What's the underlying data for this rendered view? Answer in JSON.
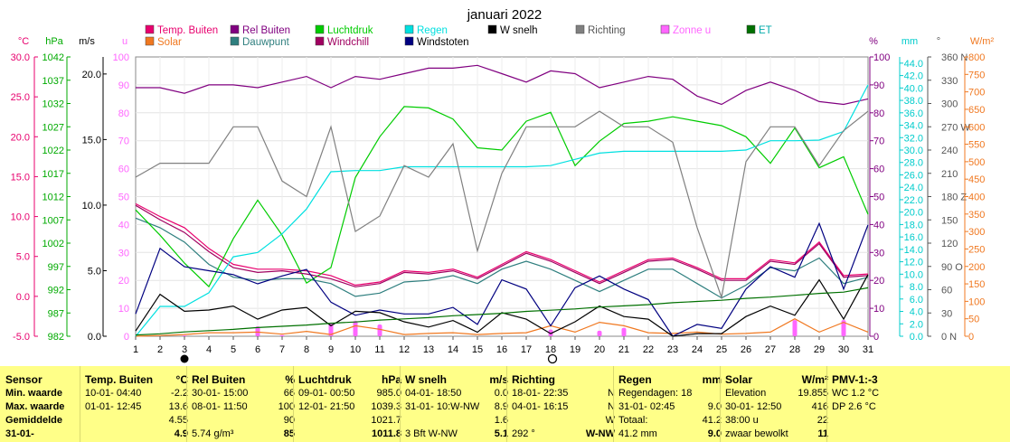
{
  "title": "januari 2022",
  "legend": [
    {
      "label": "Temp. Buiten",
      "color": "#e8006e"
    },
    {
      "label": "Solar",
      "color": "#f07820"
    },
    {
      "label": "Rel Buiten",
      "color": "#800080"
    },
    {
      "label": "Dauwpunt",
      "color": "#2f7f7f"
    },
    {
      "label": "Luchtdruk",
      "color": "#00cc00"
    },
    {
      "label": "Windchill",
      "color": "#a00060"
    },
    {
      "label": "Regen",
      "color": "#00e0e0"
    },
    {
      "label": "Windstoten",
      "color": "#000080"
    },
    {
      "label": "W snelh",
      "color": "#000000"
    },
    {
      "label": "Richting",
      "color": "#808080"
    },
    {
      "label": "Zonne u",
      "color": "#ff66ff"
    },
    {
      "label": "ET",
      "color": "#007000"
    }
  ],
  "axes": {
    "celsius": {
      "unit": "°C",
      "ticks": [
        "30.0",
        "25.0",
        "20.0",
        "15.0",
        "10.0",
        "5.0",
        "0.0",
        "-5.0"
      ],
      "color": "#e8006e"
    },
    "hpa": {
      "unit": "hPa",
      "ticks": [
        "1042",
        "1037",
        "1032",
        "1027",
        "1022",
        "1017",
        "1012",
        "1007",
        "1002",
        "997",
        "992",
        "987",
        "982"
      ],
      "color": "#00aa00"
    },
    "ms": {
      "unit": "m/s",
      "ticks": [
        "20.0",
        "15.0",
        "10.0",
        "5.0",
        "0.0"
      ],
      "color": "#000000"
    },
    "u": {
      "unit": "u",
      "ticks": [
        "100",
        "90",
        "80",
        "70",
        "60",
        "50",
        "40",
        "30",
        "20",
        "10",
        "0"
      ],
      "color": "#ff66ff"
    },
    "pct": {
      "unit": "%",
      "ticks": [
        "100",
        "90",
        "80",
        "70",
        "60",
        "50",
        "40",
        "30",
        "20",
        "10",
        "0"
      ],
      "color": "#800080"
    },
    "mm": {
      "unit": "mm",
      "ticks": [
        "44.0",
        "42.0",
        "40.0",
        "38.0",
        "36.0",
        "34.0",
        "32.0",
        "30.0",
        "28.0",
        "26.0",
        "24.0",
        "22.0",
        "20.0",
        "18.0",
        "16.0",
        "14.0",
        "12.0",
        "10.0",
        "8.0",
        "6.0",
        "4.0",
        "2.0",
        "0.0"
      ],
      "color": "#00cccc"
    },
    "deg": {
      "unit": "°",
      "ticks": [
        "360 N",
        "330",
        "300",
        "270 W",
        "240",
        "210",
        "180 Z",
        "150",
        "120",
        "90 O",
        "60",
        "30",
        "0 N"
      ],
      "color": "#555555"
    },
    "wm2": {
      "unit": "W/m²",
      "ticks": [
        "800",
        "750",
        "700",
        "650",
        "600",
        "550",
        "500",
        "450",
        "400",
        "350",
        "300",
        "250",
        "200",
        "150",
        "100",
        "50",
        "0"
      ],
      "color": "#f07820"
    },
    "x": {
      "ticks": [
        "1",
        "2",
        "3",
        "4",
        "5",
        "6",
        "7",
        "8",
        "9",
        "10",
        "11",
        "12",
        "13",
        "14",
        "15",
        "16",
        "17",
        "18",
        "19",
        "20",
        "21",
        "22",
        "23",
        "24",
        "25",
        "26",
        "27",
        "28",
        "29",
        "30",
        "31"
      ]
    }
  },
  "chart_data": {
    "type": "line",
    "title": "januari 2022",
    "x": [
      1,
      2,
      3,
      4,
      5,
      6,
      7,
      8,
      9,
      10,
      11,
      12,
      13,
      14,
      15,
      16,
      17,
      18,
      19,
      20,
      21,
      22,
      23,
      24,
      25,
      26,
      27,
      28,
      29,
      30,
      31
    ],
    "series": [
      {
        "name": "Temp. Buiten",
        "axis": "celsius",
        "color": "#e8006e",
        "values": [
          11.6,
          10.0,
          8.6,
          6.0,
          4.0,
          3.4,
          3.4,
          3.2,
          2.6,
          1.4,
          1.8,
          3.2,
          3.0,
          3.4,
          2.4,
          4.0,
          5.6,
          4.6,
          3.2,
          1.8,
          3.2,
          4.6,
          4.8,
          3.6,
          2.2,
          2.2,
          4.6,
          4.2,
          6.8,
          2.6,
          2.8
        ]
      },
      {
        "name": "Solar",
        "axis": "wm2",
        "color": "#f07820",
        "values": [
          0,
          2,
          5,
          10,
          10,
          12,
          6,
          14,
          5,
          30,
          20,
          5,
          8,
          10,
          5,
          8,
          10,
          30,
          12,
          40,
          30,
          10,
          8,
          12,
          6,
          8,
          12,
          50,
          12,
          40,
          12
        ]
      },
      {
        "name": "Rel Buiten",
        "axis": "pct",
        "color": "#800080",
        "values": [
          89,
          89,
          87,
          90,
          90,
          89,
          91,
          93,
          89,
          93,
          92,
          94,
          96,
          96,
          97,
          94,
          91,
          95,
          94,
          89,
          91,
          93,
          92,
          86,
          83,
          88,
          91,
          88,
          84,
          83,
          85
        ]
      },
      {
        "name": "Dauwpunt",
        "axis": "celsius",
        "color": "#2f7f7f",
        "values": [
          9.8,
          8.6,
          6.8,
          4.0,
          2.4,
          2.0,
          2.2,
          2.2,
          1.6,
          0.0,
          0.4,
          1.8,
          2.0,
          2.6,
          1.6,
          3.4,
          4.4,
          3.4,
          2.0,
          0.6,
          2.0,
          3.4,
          3.4,
          1.6,
          -0.2,
          1.4,
          3.6,
          3.2,
          4.8,
          1.6,
          2.4
        ]
      },
      {
        "name": "Luchtdruk",
        "axis": "hpa",
        "color": "#00cc00",
        "values": [
          1010.5,
          1004.8,
          998.5,
          993.2,
          1004.0,
          1012.7,
          1004.8,
          994.0,
          997.5,
          1017.8,
          1027.0,
          1033.8,
          1033.5,
          1031.0,
          1024.5,
          1024.0,
          1030.5,
          1032.5,
          1020.5,
          1026.0,
          1030.0,
          1030.5,
          1031.5,
          1030.5,
          1029.5,
          1027.0,
          1021.0,
          1029.0,
          1020.0,
          1022.5,
          1009.5
        ]
      },
      {
        "name": "Windchill",
        "axis": "celsius",
        "color": "#a00060",
        "values": [
          11.4,
          9.6,
          8.0,
          5.6,
          3.6,
          3.0,
          3.2,
          2.8,
          2.2,
          1.2,
          1.6,
          3.0,
          2.8,
          3.2,
          2.2,
          3.8,
          5.4,
          4.4,
          3.0,
          1.6,
          3.0,
          4.4,
          4.6,
          3.4,
          2.0,
          2.0,
          4.4,
          4.0,
          6.6,
          2.4,
          2.6
        ]
      },
      {
        "name": "Regen",
        "axis": "mm",
        "color": "#00e0e0",
        "values": [
          0,
          4.8,
          4.8,
          7.0,
          12.8,
          13.5,
          16.5,
          20.5,
          26.5,
          26.7,
          26.7,
          27.3,
          27.3,
          27.3,
          27.3,
          27.3,
          27.3,
          27.5,
          28.5,
          29.5,
          29.8,
          29.8,
          29.8,
          29.8,
          29.8,
          30.0,
          31.5,
          31.5,
          31.6,
          33.0,
          40.5
        ]
      },
      {
        "name": "Windstoten",
        "axis": "ms",
        "color": "#000080",
        "values": [
          1.7,
          6.7,
          5.3,
          5.0,
          4.7,
          4.0,
          4.6,
          5.1,
          2.6,
          1.6,
          2.0,
          1.7,
          1.7,
          2.2,
          0.9,
          4.3,
          3.6,
          0.8,
          3.7,
          4.6,
          3.6,
          2.8,
          0.0,
          0.9,
          0.6,
          3.6,
          5.3,
          4.5,
          8.6,
          3.6,
          8.5
        ]
      },
      {
        "name": "W snelh",
        "axis": "ms",
        "color": "#000000",
        "values": [
          0.4,
          3.2,
          1.9,
          2.0,
          2.3,
          1.3,
          2.0,
          2.2,
          0.8,
          1.9,
          1.8,
          1.1,
          0.7,
          1.2,
          0.3,
          1.8,
          1.3,
          0.2,
          1.1,
          2.3,
          1.5,
          1.3,
          0.0,
          0.2,
          0.2,
          1.5,
          2.3,
          1.6,
          4.3,
          1.3,
          4.7
        ]
      },
      {
        "name": "Richting",
        "axis": "deg",
        "color": "#808080",
        "values": [
          205,
          223,
          223,
          223,
          270,
          270,
          200,
          180,
          270,
          135,
          155,
          220,
          205,
          248,
          110,
          210,
          270,
          270,
          270,
          290,
          270,
          270,
          250,
          140,
          50,
          225,
          270,
          270,
          220,
          265,
          290
        ]
      },
      {
        "name": "Zonne u",
        "axis": "u",
        "color": "#ff66ff",
        "bars": true,
        "values": [
          0,
          0,
          0.3,
          0,
          0,
          3.5,
          0.4,
          0,
          4.5,
          5.5,
          4.2,
          0,
          0,
          0,
          0,
          0,
          0,
          2.4,
          0,
          2.0,
          3.0,
          0,
          0,
          0,
          0,
          0,
          0,
          5.8,
          0,
          5.8,
          0
        ]
      },
      {
        "name": "ET",
        "axis": "mm",
        "color": "#007000",
        "values": [
          0.2,
          0.4,
          0.7,
          0.9,
          1.1,
          1.4,
          1.6,
          1.8,
          2.1,
          2.3,
          2.6,
          2.8,
          3.0,
          3.3,
          3.5,
          3.7,
          4.0,
          4.2,
          4.4,
          4.7,
          4.9,
          5.1,
          5.4,
          5.6,
          5.8,
          6.1,
          6.3,
          6.6,
          6.9,
          7.1,
          7.8
        ]
      }
    ]
  },
  "panel": {
    "col_sensor": {
      "header": "Sensor",
      "r1": "Min. waarde",
      "r2": "Max. waarde",
      "r3": "Gemiddelde",
      "r4": "31-01-"
    },
    "col_temp": {
      "header": "Temp. Buiten",
      "unit": "°C",
      "r1a": "10-01- 04:40",
      "r1b": "-2.2",
      "r2a": "01-01- 12:45",
      "r2b": "13.6",
      "r3b": "4.55",
      "r4b": "4.9"
    },
    "col_rel": {
      "header": "Rel Buiten",
      "unit": "%",
      "r1a": "30-01- 15:00",
      "r1b": "66",
      "r2a": "08-01- 11:50",
      "r2b": "100",
      "r3b": "90",
      "r4a": "5.74 g/m³",
      "r4b": "85"
    },
    "col_druk": {
      "header": "Luchtdruk",
      "unit": "hPa",
      "r1a": "09-01- 00:50",
      "r1b": "985.0",
      "r2a": "12-01- 21:50",
      "r2b": "1039.3",
      "r3b": "1021.7",
      "r4b": "1011.8"
    },
    "col_wind": {
      "header": "W snelh",
      "unit": "m/s",
      "r1a": "04-01- 18:50",
      "r1b": "0.0",
      "r2a": "31-01- 10:W-NW",
      "r2b": "8.9",
      "r3b": "1.6",
      "r4a": "3 Bft W-NW",
      "r4b": "5.1"
    },
    "col_richt": {
      "header": "Richting",
      "r1a": "18-01- 22:35",
      "r1b": "N",
      "r2a": "04-01- 16:15",
      "r2b": "N",
      "r3b": "W",
      "r4a": "292 °",
      "r4b": "W-NW"
    },
    "col_regen": {
      "header": "Regen",
      "unit": "mm",
      "r1a": "Regendagen: 18",
      "r2a": "31-01- 02:45",
      "r2b": "9.0",
      "r3a": "Totaal:",
      "r3b": "41.2",
      "r4a": "41.2 mm",
      "r4b": "9.0"
    },
    "col_solar": {
      "header": "Solar",
      "unit": "W/m²",
      "r1a": "Elevation",
      "r1b": "19.855",
      "r2a": "30-01- 12:50",
      "r2b": "416",
      "r3a": "38:00 u",
      "r3b": "22",
      "r4a": "zwaar bewolkt",
      "r4b": "11"
    },
    "col_pmv": {
      "header": "PMV-1:-3",
      "r1a": "WC 1.2 °C",
      "r2a": "DP 2.6 °C"
    }
  }
}
